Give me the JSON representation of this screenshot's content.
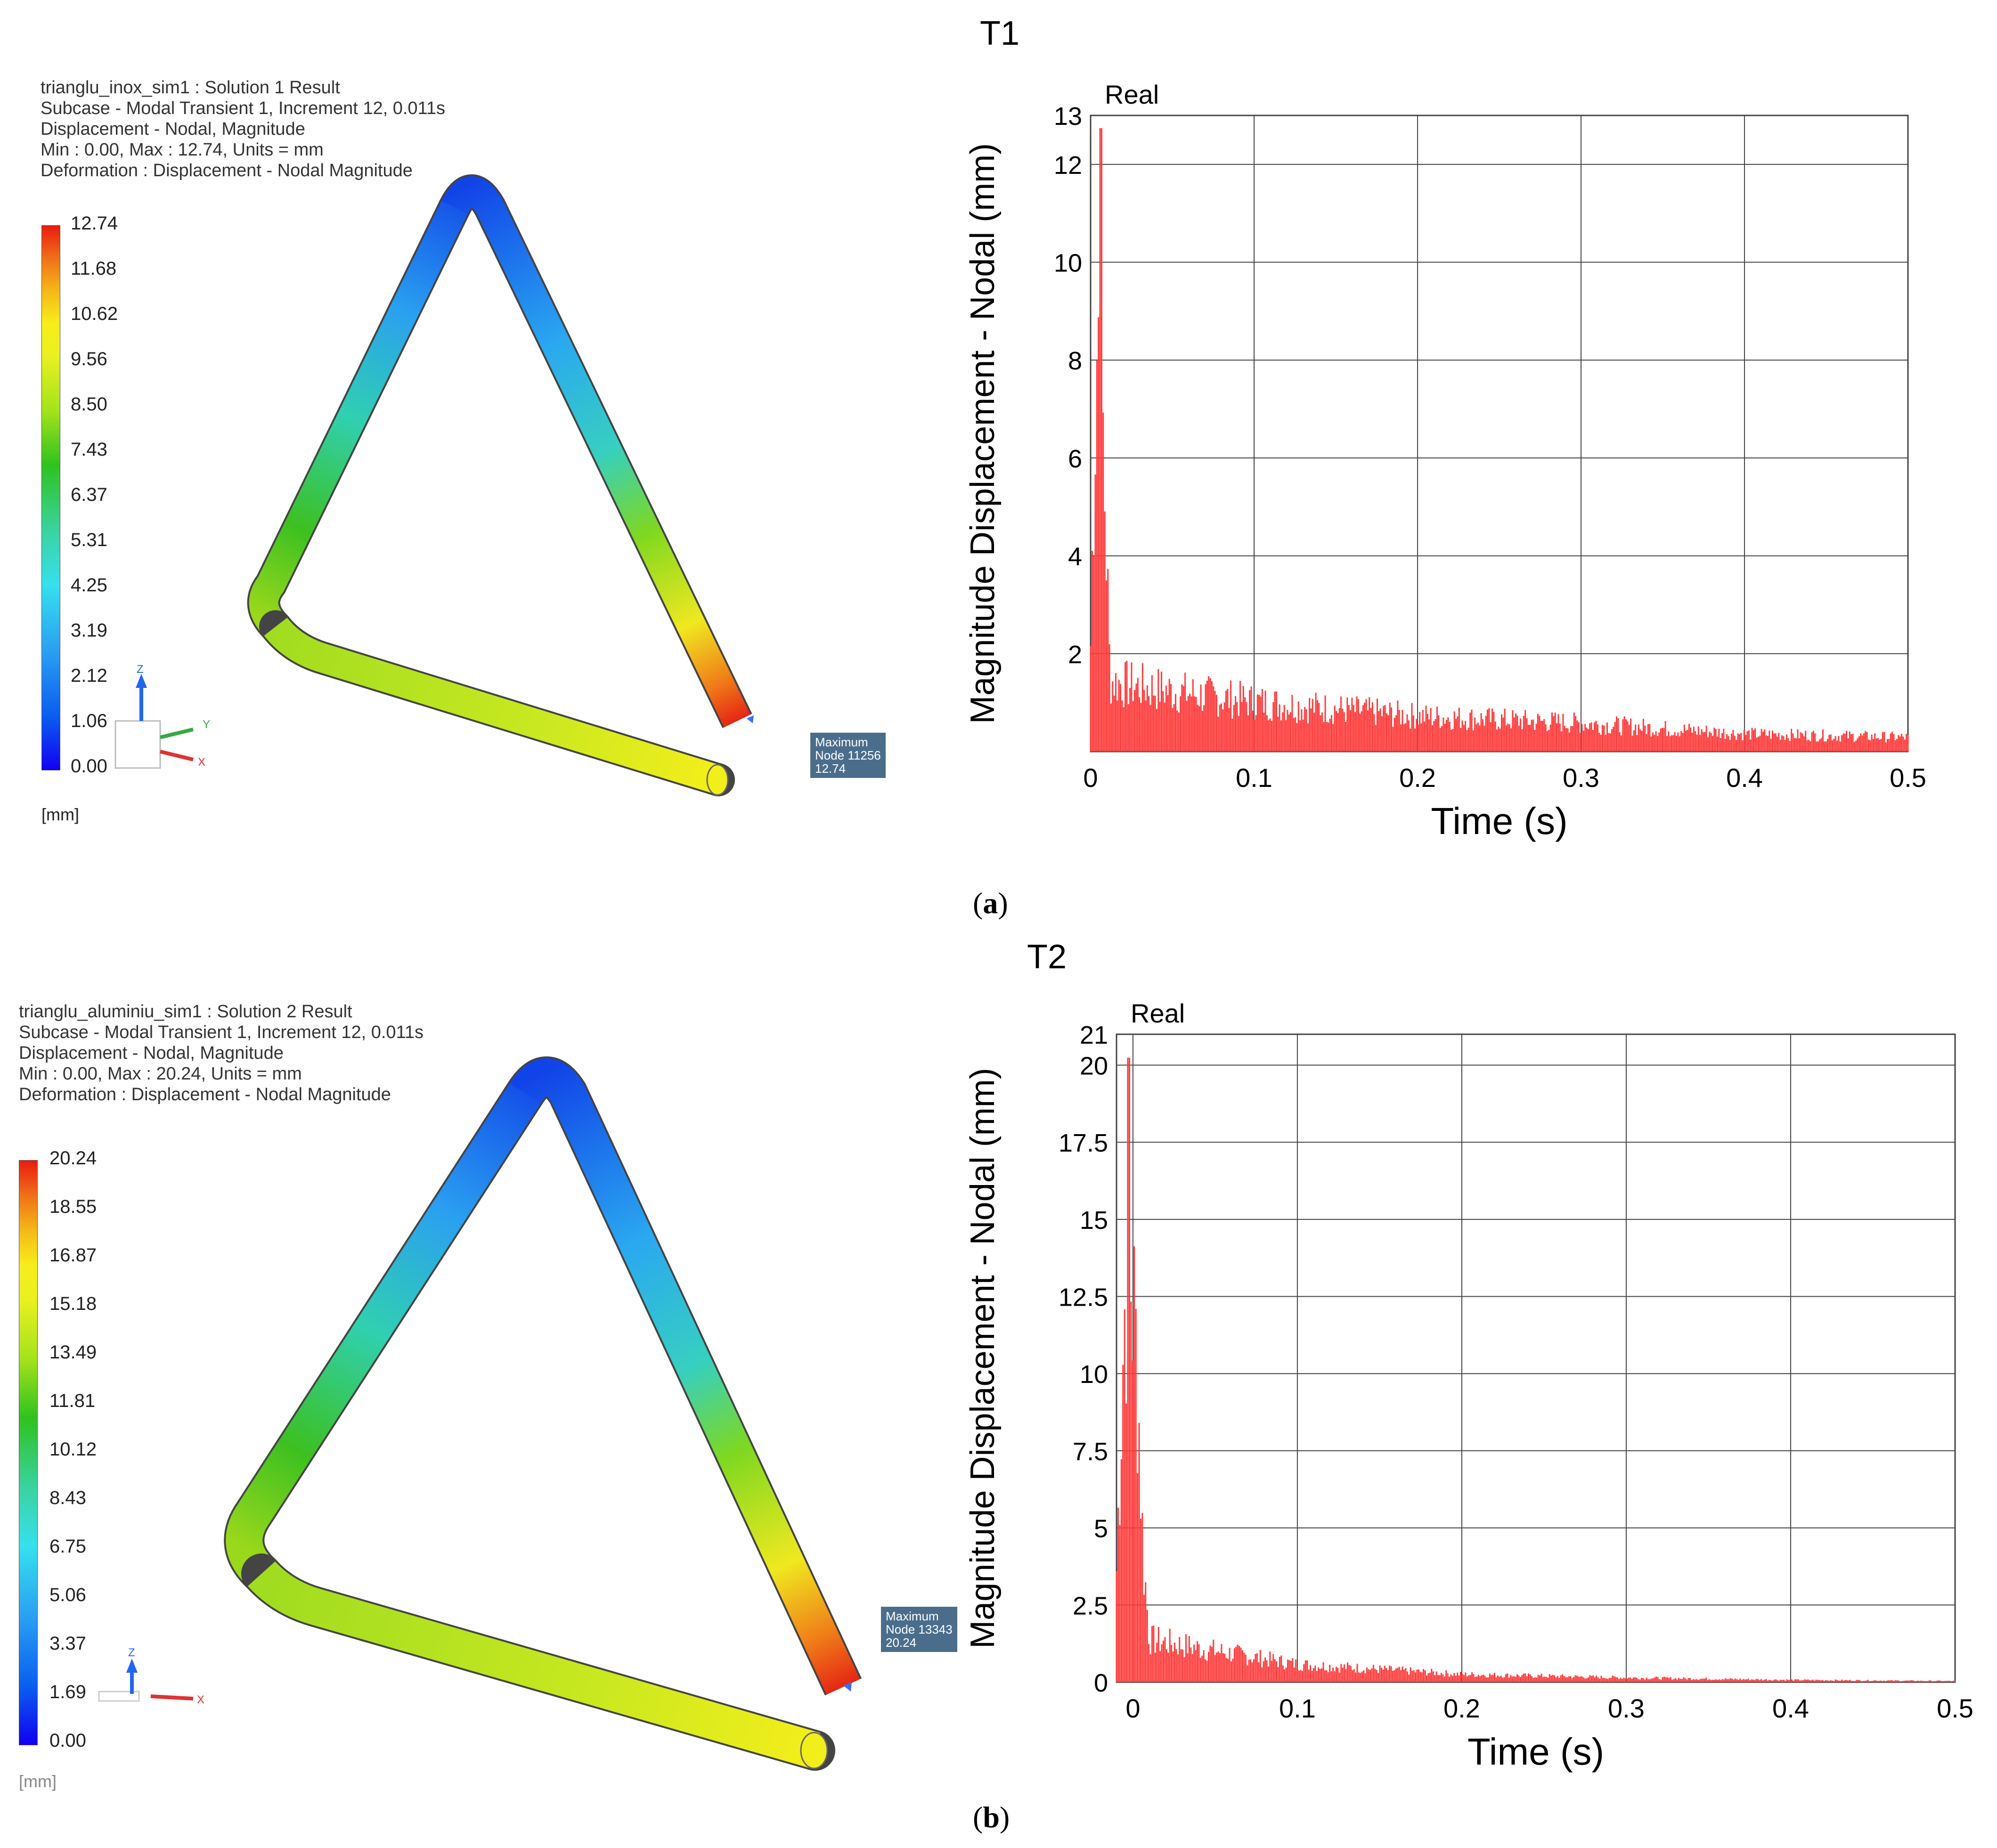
{
  "panel_a": {
    "sim_header": [
      "trianglu_inox_sim1 : Solution 1 Result",
      "Subcase - Modal Transient 1, Increment 12, 0.011s",
      "Displacement - Nodal, Magnitude",
      "Min : 0.00, Max : 12.74, Units = mm",
      "Deformation : Displacement - Nodal Magnitude"
    ],
    "legend_values": [
      "12.74",
      "11.68",
      "10.62",
      "9.56",
      "8.50",
      "7.43",
      "6.37",
      "5.31",
      "4.25",
      "3.19",
      "2.12",
      "1.06",
      "0.00"
    ],
    "unit": "[mm]",
    "max_label": {
      "title": "Maximum",
      "node": "Node 11256",
      "value": "12.74"
    },
    "axes_triad": {
      "z": "Z",
      "y": "Y",
      "x": "X"
    },
    "caption_letter": "a"
  },
  "panel_b": {
    "sim_header": [
      "trianglu_aluminiu_sim1 : Solution 2 Result",
      "Subcase - Modal Transient 1, Increment 12, 0.011s",
      "Displacement - Nodal, Magnitude",
      "Min : 0.00, Max : 20.24, Units = mm",
      "Deformation : Displacement - Nodal Magnitude"
    ],
    "legend_values": [
      "20.24",
      "18.55",
      "16.87",
      "15.18",
      "13.49",
      "11.81",
      "10.12",
      "8.43",
      "6.75",
      "5.06",
      "3.37",
      "1.69",
      "0.00"
    ],
    "unit": "[mm]",
    "max_label": {
      "title": "Maximum",
      "node": "Node 13343",
      "value": "20.24"
    },
    "axes_triad": {
      "z": "Z",
      "x": "X"
    },
    "caption_letter": "b"
  },
  "colors": {
    "trace": "#ff3b3b",
    "grid": "#444444",
    "max_box": "#4a6d8c"
  },
  "chart_data": [
    {
      "type": "bar",
      "title": "T1",
      "series_name": "Real",
      "xlabel": "Time (s)",
      "ylabel": "Magnitude Displacement - Nodal (mm)",
      "xlim": [
        0,
        0.5
      ],
      "ylim": [
        0,
        13
      ],
      "xticks": [
        0,
        0.1,
        0.2,
        0.3,
        0.4,
        0.5
      ],
      "xtick_labels": [
        "0",
        "0.1",
        "0.2",
        "0.3",
        "0.4",
        "0.5"
      ],
      "yticks": [
        2,
        4,
        6,
        8,
        10,
        12,
        13
      ],
      "ytick_labels": [
        "2",
        "4",
        "6",
        "8",
        "10",
        "12",
        "13"
      ],
      "peak": {
        "time": 0.006,
        "value": 12.74
      },
      "envelope": {
        "t": [
          0,
          0.002,
          0.004,
          0.006,
          0.008,
          0.01,
          0.012,
          0.02,
          0.05,
          0.1,
          0.2,
          0.3,
          0.4,
          0.5
        ],
        "value": [
          3.0,
          8.0,
          11.8,
          12.74,
          8.3,
          5.2,
          2.0,
          1.9,
          1.7,
          1.4,
          1.0,
          0.8,
          0.5,
          0.4
        ]
      }
    },
    {
      "type": "bar",
      "title": "T2",
      "series_name": "Real",
      "xlabel": "Time (s)",
      "ylabel": "Magnitude Displacement - Nodal (mm)",
      "xlim": [
        -0.01,
        0.5
      ],
      "ylim": [
        0,
        21
      ],
      "xticks": [
        0,
        0.1,
        0.2,
        0.3,
        0.4,
        0.5
      ],
      "xtick_labels": [
        "0",
        "0.1",
        "0.2",
        "0.3",
        "0.4",
        "0.5"
      ],
      "yticks": [
        0,
        2.5,
        5,
        7.5,
        10,
        12.5,
        15,
        17.5,
        20,
        21
      ],
      "ytick_labels": [
        "0",
        "2.5",
        "5",
        "7.5",
        "10",
        "12.5",
        "15",
        "17.5",
        "20",
        "21"
      ],
      "peak": {
        "time": -0.003,
        "value": 20.24
      },
      "envelope": {
        "t": [
          -0.01,
          -0.006,
          -0.003,
          0,
          0.003,
          0.006,
          0.01,
          0.05,
          0.1,
          0.2,
          0.3,
          0.4,
          0.5
        ],
        "value": [
          5.0,
          15.0,
          20.24,
          17.0,
          13.5,
          6.0,
          1.9,
          1.4,
          0.8,
          0.35,
          0.2,
          0.1,
          0.05
        ]
      }
    }
  ]
}
